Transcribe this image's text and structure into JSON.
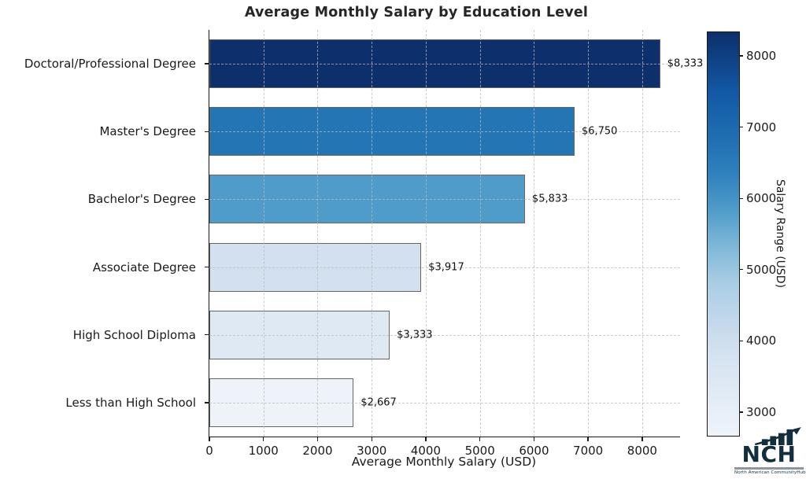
{
  "chart_data": {
    "type": "bar",
    "orientation": "horizontal",
    "title": "Average Monthly Salary by Education Level",
    "xlabel": "Average Monthly Salary (USD)",
    "categories": [
      "Doctoral/Professional Degree",
      "Master's Degree",
      "Bachelor's Degree",
      "Associate Degree",
      "High School Diploma",
      "Less than High School"
    ],
    "values": [
      8333,
      6750,
      5833,
      3917,
      3333,
      2667
    ],
    "value_labels": [
      "$8,333",
      "$6,750",
      "$5,833",
      "$3,917",
      "$3,333",
      "$2,667"
    ],
    "bar_colors": [
      "#0d2f6b",
      "#2475b4",
      "#4f9bc9",
      "#d2e0ef",
      "#dfe9f4",
      "#eef3fa"
    ],
    "bar_edge_color": "#666666",
    "x_ticks": [
      0,
      1000,
      2000,
      3000,
      4000,
      5000,
      6000,
      7000,
      8000
    ],
    "xlim": [
      0,
      8700
    ],
    "grid": "dashed, both axes",
    "legend": "none",
    "colorbar": {
      "label": "Salary Range (USD)",
      "ticks": [
        3000,
        4000,
        5000,
        6000,
        7000,
        8000
      ],
      "min": 2667,
      "max": 8333,
      "gradient_bottom": "#eff4fb",
      "gradient_top": "#0d2f6b"
    }
  },
  "logo": {
    "text": "NCH",
    "tagline": "North American CommunityHub",
    "color": "#132e3c"
  }
}
